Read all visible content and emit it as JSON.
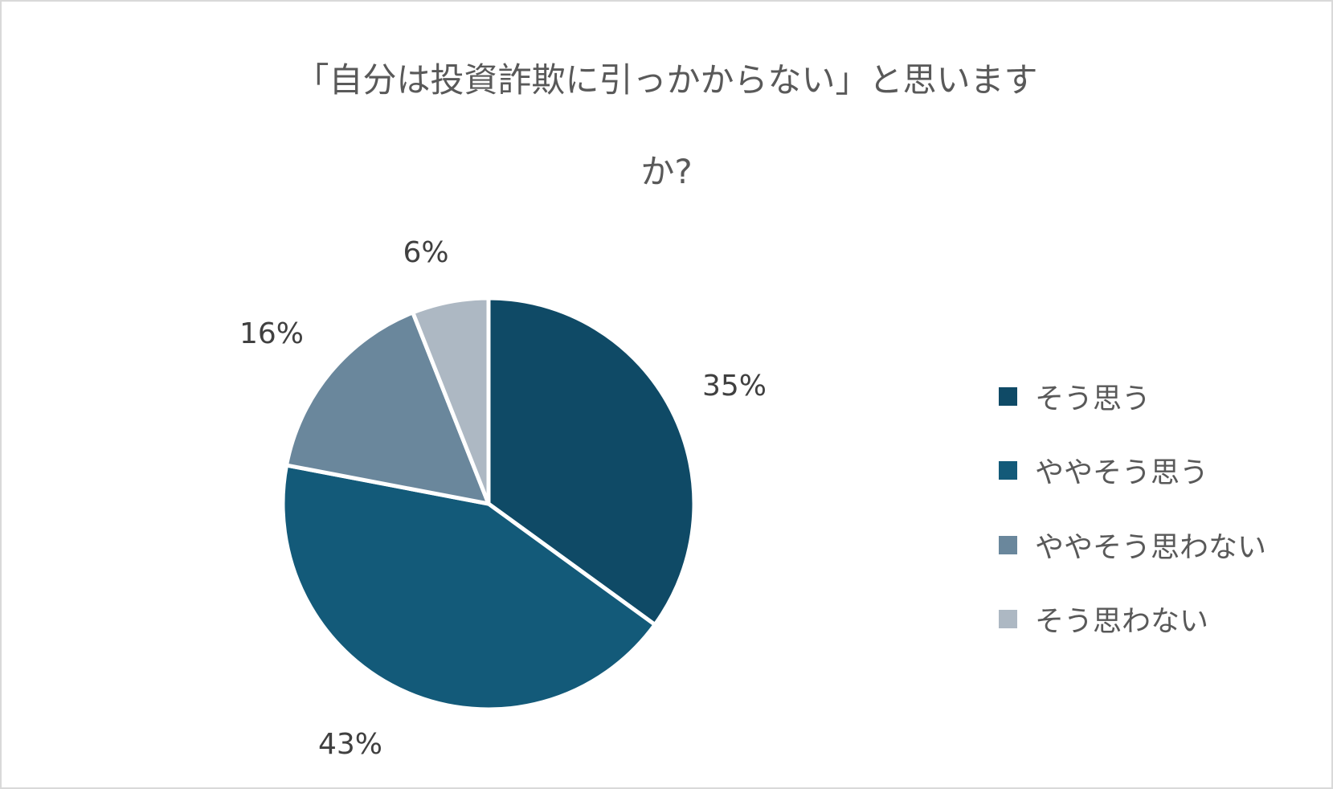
{
  "chart_data": {
    "type": "pie",
    "title_lines": [
      "「自分は投資詐欺に引っかからない」と思います",
      "か?"
    ],
    "categories": [
      "そう思う",
      "ややそう思う",
      "ややそう思わない",
      "そう思わない"
    ],
    "values": [
      35,
      43,
      16,
      6
    ],
    "data_labels": [
      "35%",
      "43%",
      "16%",
      "6%"
    ],
    "colors": [
      "#0f4a66",
      "#135a79",
      "#6a879c",
      "#adb8c3"
    ],
    "start": "top",
    "direction": "clockwise",
    "legend_placement": "right"
  }
}
